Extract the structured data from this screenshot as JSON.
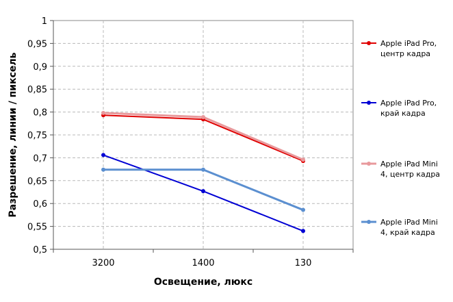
{
  "chart_data": {
    "type": "line",
    "categories": [
      "3200",
      "1400",
      "130"
    ],
    "xlabel": "Освещение,  люкс",
    "ylabel": "Разрешение,  линии / пиксель",
    "ylim": [
      0.5,
      1
    ],
    "ystep": 0.05,
    "grid": true,
    "legend": "right",
    "series": [
      {
        "name": [
          "Apple iPad Pro,",
          "центр кадра"
        ],
        "values": [
          0.793,
          0.784,
          0.693
        ],
        "color": "#e00000",
        "width": 2
      },
      {
        "name": [
          "Apple iPad Pro,",
          "край кадра"
        ],
        "values": [
          0.706,
          0.627,
          0.54
        ],
        "color": "#0000d4",
        "width": 2
      },
      {
        "name": [
          "Apple iPad Mini",
          "4, центр кадра"
        ],
        "values": [
          0.798,
          0.789,
          0.696
        ],
        "color": "#e8999c",
        "width": 3
      },
      {
        "name": [
          "Apple iPad Mini",
          "4, край кадра"
        ],
        "values": [
          0.674,
          0.674,
          0.586
        ],
        "color": "#5b8fd0",
        "width": 3
      }
    ]
  }
}
